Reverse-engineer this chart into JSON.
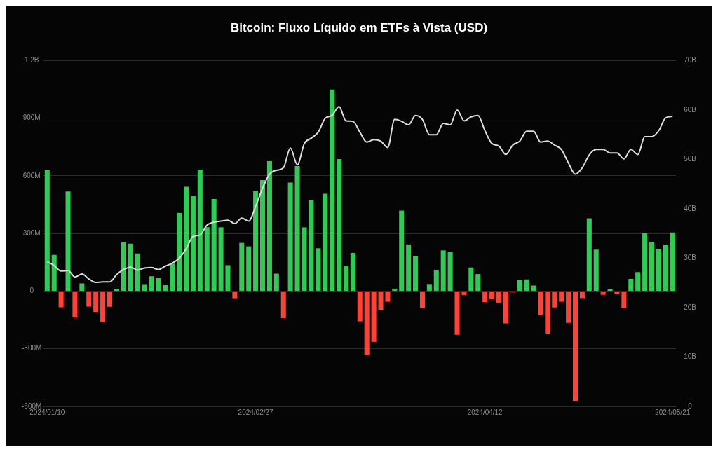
{
  "chart_data": {
    "type": "bar",
    "title": "Bitcoin: Fluxo Líquido em ETFs à Vista (USD)",
    "categories": [
      "2024/01/10",
      null,
      null,
      null,
      null,
      null,
      null,
      null,
      null,
      null,
      null,
      null,
      null,
      null,
      null,
      null,
      null,
      null,
      null,
      null,
      null,
      null,
      null,
      null,
      null,
      null,
      null,
      null,
      null,
      null,
      "2024/02/27",
      null,
      null,
      null,
      null,
      null,
      null,
      null,
      null,
      null,
      null,
      null,
      null,
      null,
      null,
      null,
      null,
      null,
      null,
      null,
      null,
      null,
      null,
      null,
      null,
      null,
      null,
      null,
      null,
      null,
      null,
      null,
      null,
      "2024/04/12",
      null,
      null,
      null,
      null,
      null,
      null,
      null,
      null,
      null,
      null,
      null,
      null,
      null,
      null,
      null,
      null,
      null,
      null,
      null,
      null,
      null,
      null,
      null,
      null,
      null,
      null,
      "2024/05/21"
    ],
    "series": [
      {
        "colors": [
          "#2fcc55",
          "#2fcc55",
          "#ff4136",
          "#2fcc55",
          "#ff4136",
          "#2fcc55",
          "#ff4136",
          "#ff4136",
          "#ff4136",
          "#ff4136",
          "#2fcc55",
          "#2fcc55",
          "#2fcc55",
          "#2fcc55",
          "#2fcc55",
          "#2fcc55",
          "#2fcc55",
          "#2fcc55",
          "#2fcc55",
          "#2fcc55",
          "#2fcc55",
          "#2fcc55",
          "#2fcc55",
          "#2fcc55",
          "#2fcc55",
          "#2fcc55",
          "#2fcc55",
          "#ff4136",
          "#2fcc55",
          "#2fcc55",
          "#2fcc55",
          "#2fcc55",
          "#2fcc55",
          "#2fcc55",
          "#ff4136",
          "#2fcc55",
          "#2fcc55",
          "#2fcc55",
          "#2fcc55",
          "#2fcc55",
          "#2fcc55",
          "#2fcc55",
          "#2fcc55",
          "#2fcc55",
          "#2fcc55",
          "#ff4136",
          "#ff4136",
          "#ff4136",
          "#ff4136",
          "#ff4136",
          "#2fcc55",
          "#2fcc55",
          "#2fcc55",
          "#2fcc55",
          "#ff4136",
          "#2fcc55",
          "#2fcc55",
          "#2fcc55",
          "#2fcc55",
          "#ff4136",
          "#ff4136",
          "#2fcc55",
          "#2fcc55",
          "#ff4136",
          "#ff4136",
          "#ff4136",
          "#ff4136",
          "#ff4136",
          "#2fcc55",
          "#2fcc55",
          "#2fcc55",
          "#ff4136",
          "#ff4136",
          "#ff4136",
          "#ff4136",
          "#ff4136",
          "#ff4136",
          "#ff4136",
          "#2fcc55",
          "#2fcc55",
          "#ff4136",
          "#2fcc55",
          "#ff4136",
          "#ff4136",
          "#2fcc55",
          "#2fcc55",
          "#2fcc55",
          "#2fcc55",
          "#2fcc55",
          "#2fcc55",
          "#2fcc55"
        ],
        "values": [
          630000000.0,
          189000000.0,
          -84000000.0,
          519000000.0,
          -137000000.0,
          40000000.0,
          -80000000.0,
          -108000000.0,
          -161000000.0,
          -81000000.0,
          13000000.0,
          255000000.0,
          247000000.0,
          196000000.0,
          36000000.0,
          77000000.0,
          67000000.0,
          32000000.0,
          143000000.0,
          407000000.0,
          543000000.0,
          495000000.0,
          633000000.0,
          333000000.0,
          479000000.0,
          332000000.0,
          135000000.0,
          -37000000.0,
          251000000.0,
          233000000.0,
          521000000.0,
          578000000.0,
          676000000.0,
          91000000.0,
          -141000000.0,
          565000000.0,
          651000000.0,
          332000000.0,
          473000000.0,
          223000000.0,
          507000000.0,
          1049000000.0,
          687000000.0,
          131000000.0,
          199000000.0,
          -157000000.0,
          -331000000.0,
          -264000000.0,
          -97000000.0,
          -55000000.0,
          13000000.0,
          419000000.0,
          243000000.0,
          181000000.0,
          -88000000.0,
          37000000.0,
          111000000.0,
          212000000.0,
          203000000.0,
          -227000000.0,
          -21000000.0,
          123000000.0,
          89000000.0,
          -57000000.0,
          -40000000.0,
          -60000000.0,
          -168000000.0,
          -7000000.0,
          59000000.0,
          61000000.0,
          29000000.0,
          -124000000.0,
          -221000000.0,
          -85000000.0,
          -55000000.0,
          -165000000.0,
          -571000000.0,
          -37000000.0,
          379000000.0,
          216000000.0,
          -19000000.0,
          11000000.0,
          -13000000.0,
          -88000000.0,
          64000000.0,
          99000000.0,
          303000000.0,
          256000000.0,
          220000000.0,
          240000000.0,
          305000000.0
        ]
      },
      {
        "type": "line",
        "axis": "y2",
        "color": "#dcdcdc",
        "marker": "none",
        "line_style": "solid",
        "values": [
          29300000000.0,
          28500000000.0,
          27400000000.0,
          27500000000.0,
          26200000000.0,
          26800000000.0,
          25800000000.0,
          25100000000.0,
          25200000000.0,
          25200000000.0,
          26700000000.0,
          27700000000.0,
          28200000000.0,
          27600000000.0,
          28000000000.0,
          28100000000.0,
          27700000000.0,
          28400000000.0,
          29000000000.0,
          30000000000.0,
          31900000000.0,
          34400000000.0,
          34700000000.0,
          36700000000.0,
          37300000000.0,
          37500000000.0,
          37700000000.0,
          37000000000.0,
          38100000000.0,
          37500000000.0,
          40500000000.0,
          44200000000.0,
          47000000000.0,
          47800000000.0,
          48300000000.0,
          52300000000.0,
          48900000000.0,
          53200000000.0,
          54300000000.0,
          55500000000.0,
          58300000000.0,
          58900000000.0,
          60700000000.0,
          57800000000.0,
          57700000000.0,
          55500000000.0,
          53500000000.0,
          54000000000.0,
          53700000000.0,
          52400000000.0,
          58100000000.0,
          57700000000.0,
          57000000000.0,
          58900000000.0,
          58100000000.0,
          55000000000.0,
          55000000000.0,
          57300000000.0,
          57000000000.0,
          60000000000.0,
          57800000000.0,
          58600000000.0,
          58900000000.0,
          55800000000.0,
          53200000000.0,
          52700000000.0,
          51000000000.0,
          52900000000.0,
          53700000000.0,
          55700000000.0,
          55700000000.0,
          53500000000.0,
          53700000000.0,
          52900000000.0,
          52000000000.0,
          49300000000.0,
          47000000000.0,
          48300000000.0,
          50900000000.0,
          52000000000.0,
          52000000000.0,
          51300000000.0,
          51300000000.0,
          50100000000.0,
          52000000000.0,
          51000000000.0,
          54600000000.0,
          54600000000.0,
          55800000000.0,
          58400000000.0,
          58700000000.0
        ]
      }
    ],
    "ylim": [
      -600000000.0,
      1200000000.0
    ],
    "yticks": [
      {
        "value": -600000000.0,
        "label": "-600M"
      },
      {
        "value": -300000000.0,
        "label": "-300M"
      },
      0,
      {
        "value": 300000000.0,
        "label": "300M"
      },
      {
        "value": 600000000.0,
        "label": "600M"
      },
      {
        "value": 900000000.0,
        "label": "900M"
      },
      {
        "value": 1200000000.0,
        "label": "1.2B"
      }
    ],
    "y2lim": [
      0,
      70000000000.0
    ],
    "y2ticks": [
      0,
      {
        "value": 10000000000.0,
        "label": "10B"
      },
      {
        "value": 20000000000.0,
        "label": "20B"
      },
      {
        "value": 30000000000.0,
        "label": "30B"
      },
      {
        "value": 40000000000.0,
        "label": "40B"
      },
      {
        "value": 50000000000.0,
        "label": "50B"
      },
      {
        "value": 60000000000.0,
        "label": "60B"
      },
      {
        "value": 70000000000.0,
        "label": "70B"
      }
    ],
    "grid": "y",
    "legend": false
  }
}
